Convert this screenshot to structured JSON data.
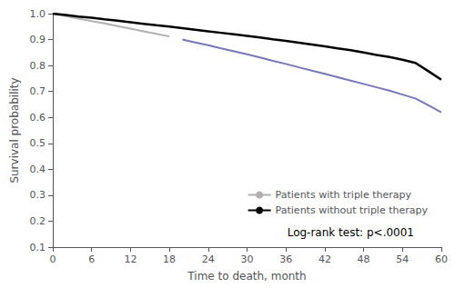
{
  "chart_data": {
    "type": "line",
    "x": [
      0,
      2,
      4,
      6,
      8,
      10,
      12,
      14,
      16,
      18,
      20,
      22,
      24,
      26,
      28,
      30,
      32,
      34,
      36,
      38,
      40,
      42,
      44,
      46,
      48,
      50,
      52,
      54,
      56,
      58,
      60
    ],
    "series": [
      {
        "name": "Patients with triple therapy",
        "color": "#b0b0b0",
        "values": [
          1.0,
          0.99,
          0.981,
          0.971,
          0.962,
          0.952,
          0.942,
          0.932,
          0.922,
          0.912,
          null,
          null,
          null,
          null,
          null,
          null,
          null,
          null,
          null,
          null,
          null,
          null,
          null,
          null,
          null,
          null,
          null,
          null,
          null,
          null,
          null
        ]
      },
      {
        "color": "#7777bb",
        "values": [
          null,
          null,
          null,
          null,
          null,
          null,
          null,
          null,
          null,
          null,
          0.9,
          0.889,
          0.878,
          0.866,
          0.855,
          0.843,
          0.831,
          0.818,
          0.806,
          0.793,
          0.78,
          0.768,
          0.755,
          0.742,
          0.729,
          0.716,
          0.703,
          0.688,
          0.673,
          0.647,
          0.62
        ]
      },
      {
        "name": "Patients without triple therapy",
        "color": "#000000",
        "values": [
          1.0,
          0.995,
          0.989,
          0.984,
          0.978,
          0.973,
          0.967,
          0.961,
          0.955,
          0.95,
          0.944,
          0.938,
          0.932,
          0.926,
          0.92,
          0.914,
          0.908,
          0.901,
          0.895,
          0.888,
          0.881,
          0.874,
          0.866,
          0.859,
          0.85,
          0.841,
          0.833,
          0.822,
          0.81,
          0.778,
          0.745
        ]
      }
    ],
    "xlabel": "Time to death, month",
    "ylabel": "Survival probability",
    "xlim": [
      0,
      60
    ],
    "ylim": [
      0.1,
      1.0
    ],
    "xticks": [
      0,
      6,
      12,
      18,
      24,
      30,
      36,
      42,
      48,
      54,
      60
    ],
    "yticks": [
      0.1,
      0.2,
      0.3,
      0.4,
      0.5,
      0.6,
      0.7,
      0.8,
      0.9,
      {
        "value": 1.0,
        "label": "1.0"
      }
    ],
    "annotation": "Log-rank test: p<.0001",
    "legend": "lower right",
    "grid": false
  }
}
